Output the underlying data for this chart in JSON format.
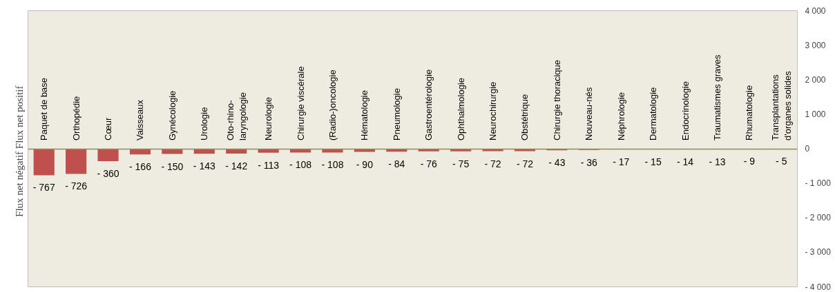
{
  "chart_data": {
    "type": "bar",
    "ylabel": "Flux net négatif   Flux net positif",
    "categories": [
      "Paquet de base",
      "Orthopédie",
      "Cœur",
      "Vaisseaux",
      "Gynécologie",
      "Urologie",
      "Oto-rhino-\nlaryngologie",
      "Neurologie",
      "Chirurgie viscérale",
      "(Radio-)oncologie",
      "Hématologie",
      "Pneumologie",
      "Gastroentérologie",
      "Ophthalmologie",
      "Neurochirurgie",
      "Obstétrique",
      "Chirurgie thoracique",
      "Nouveau-nés",
      "Néphrologie",
      "Dermatologie",
      "Endocrinologie",
      "Traumatismes graves",
      "Rhumatologie",
      "Transplantations\nd'organes solides"
    ],
    "values": [
      -767,
      -726,
      -360,
      -166,
      -150,
      -143,
      -142,
      -113,
      -108,
      -108,
      -90,
      -84,
      -76,
      -75,
      -72,
      -72,
      -43,
      -36,
      -17,
      -15,
      -14,
      -13,
      -9,
      -5
    ],
    "value_labels": [
      "- 767",
      "- 726",
      "- 360",
      "- 166",
      "- 150",
      "- 143",
      "- 142",
      "- 113",
      "- 108",
      "- 108",
      "- 90",
      "- 84",
      "- 76",
      "- 75",
      "- 72",
      "- 72",
      "- 43",
      "- 36",
      "- 17",
      "- 15",
      "- 14",
      "- 13",
      "- 9",
      "- 5"
    ],
    "color": "#c0504d",
    "ylim": [
      -4000,
      4000
    ],
    "yticks": [
      {
        "value": -4000,
        "label": "- 4 000"
      },
      {
        "value": -3000,
        "label": "- 3 000"
      },
      {
        "value": -2000,
        "label": "- 2 000"
      },
      {
        "value": -1000,
        "label": "- 1 000"
      },
      0,
      {
        "value": 1000,
        "label": "1 000"
      },
      {
        "value": 2000,
        "label": "2 000"
      },
      {
        "value": 3000,
        "label": "3 000"
      },
      {
        "value": 4000,
        "label": "4 000"
      }
    ],
    "grid": false
  }
}
